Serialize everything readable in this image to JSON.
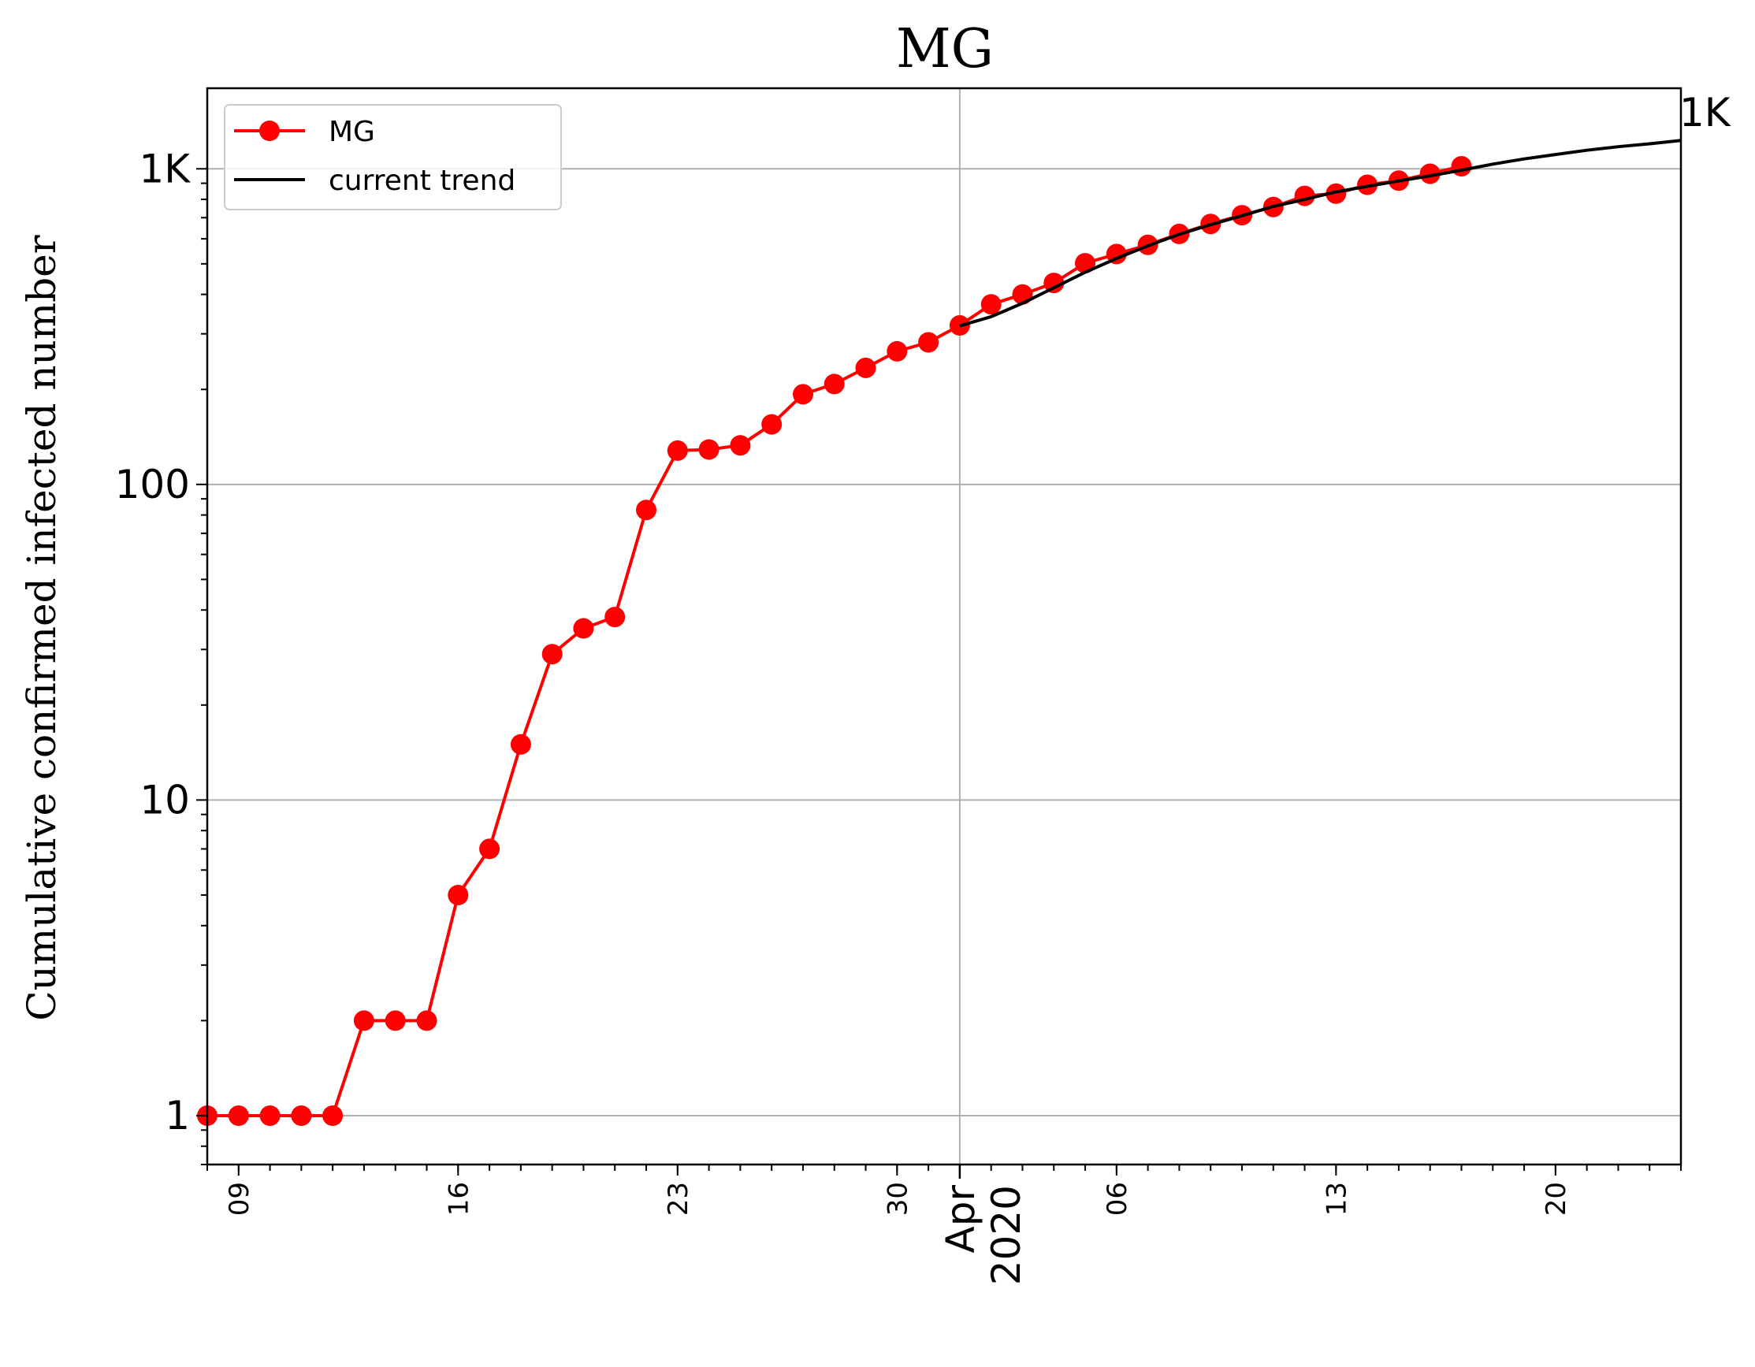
{
  "chart_data": {
    "type": "line",
    "title": "MG",
    "xlabel": "",
    "ylabel": "Cumulative confirmed infected number",
    "yscale": "log",
    "ylim": [
      0.7,
      1800
    ],
    "xlim": [
      "2020-03-08",
      "2020-04-24"
    ],
    "grid": true,
    "legend_position": "top-left",
    "y_ticks": [
      {
        "value": 1,
        "label": "1"
      },
      {
        "value": 10,
        "label": "10"
      },
      {
        "value": 100,
        "label": "100"
      },
      {
        "value": 1000,
        "label": "1K"
      }
    ],
    "x_ticks": [
      {
        "date": "2020-03-09",
        "label": "09"
      },
      {
        "date": "2020-03-16",
        "label": "16"
      },
      {
        "date": "2020-03-23",
        "label": "23"
      },
      {
        "date": "2020-03-30",
        "label": "30"
      },
      {
        "date": "2020-04-06",
        "label": "06"
      },
      {
        "date": "2020-04-13",
        "label": "13"
      },
      {
        "date": "2020-04-20",
        "label": "20"
      }
    ],
    "x_major_tick": {
      "date": "2020-04-01",
      "label_line1": "Apr",
      "label_line2": "2020"
    },
    "end_annotation": "1K",
    "series": [
      {
        "name": "MG",
        "color": "#ff0000",
        "marker": "circle",
        "x": [
          "2020-03-08",
          "2020-03-09",
          "2020-03-10",
          "2020-03-11",
          "2020-03-12",
          "2020-03-13",
          "2020-03-14",
          "2020-03-15",
          "2020-03-16",
          "2020-03-17",
          "2020-03-18",
          "2020-03-19",
          "2020-03-20",
          "2020-03-21",
          "2020-03-22",
          "2020-03-23",
          "2020-03-24",
          "2020-03-25",
          "2020-03-26",
          "2020-03-27",
          "2020-03-28",
          "2020-03-29",
          "2020-03-30",
          "2020-03-31",
          "2020-04-01",
          "2020-04-02",
          "2020-04-03",
          "2020-04-04",
          "2020-04-05",
          "2020-04-06",
          "2020-04-07",
          "2020-04-08",
          "2020-04-09",
          "2020-04-10",
          "2020-04-11",
          "2020-04-12",
          "2020-04-13",
          "2020-04-14",
          "2020-04-15",
          "2020-04-16",
          "2020-04-17"
        ],
        "values": [
          1,
          1,
          1,
          1,
          1,
          2,
          2,
          2,
          5,
          7,
          15,
          29,
          35,
          38,
          83,
          128,
          129,
          133,
          155,
          193,
          208,
          234,
          264,
          282,
          319,
          372,
          400,
          435,
          502,
          537,
          574,
          622,
          669,
          713,
          757,
          821,
          834,
          890,
          917,
          965,
          1019
        ]
      },
      {
        "name": "current trend",
        "color": "#000000",
        "marker": "none",
        "x": [
          "2020-04-01",
          "2020-04-02",
          "2020-04-03",
          "2020-04-04",
          "2020-04-05",
          "2020-04-06",
          "2020-04-07",
          "2020-04-08",
          "2020-04-09",
          "2020-04-10",
          "2020-04-11",
          "2020-04-12",
          "2020-04-13",
          "2020-04-14",
          "2020-04-15",
          "2020-04-16",
          "2020-04-17",
          "2020-04-18",
          "2020-04-19",
          "2020-04-20",
          "2020-04-21",
          "2020-04-22",
          "2020-04-23",
          "2020-04-24"
        ],
        "values": [
          318,
          340,
          375,
          420,
          470,
          520,
          570,
          620,
          665,
          710,
          760,
          800,
          845,
          880,
          915,
          950,
          990,
          1035,
          1075,
          1110,
          1145,
          1175,
          1200,
          1230
        ]
      }
    ]
  }
}
